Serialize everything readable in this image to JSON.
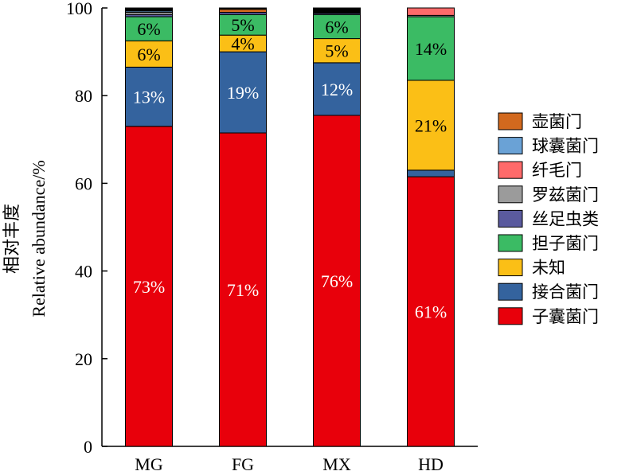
{
  "chart_data": {
    "type": "bar",
    "stacked": true,
    "categories": [
      "MG",
      "FG",
      "MX",
      "HD"
    ],
    "ylim": [
      0,
      100
    ],
    "yticks": [
      0,
      20,
      40,
      60,
      80,
      100
    ],
    "ylabel_line1": "相对丰度",
    "ylabel_line2": "Relative abundance/%",
    "xlabel": "",
    "title": "",
    "legend_position": "right",
    "series": [
      {
        "name": "子囊菌门",
        "color": "#e8000b",
        "values": [
          73,
          71.5,
          75.5,
          61.5
        ],
        "labels": [
          "73%",
          "71%",
          "76%",
          "61%"
        ]
      },
      {
        "name": "接合菌门",
        "color": "#34639e",
        "values": [
          13.5,
          18.5,
          12,
          1.5
        ],
        "labels": [
          "13%",
          "19%",
          "12%",
          ""
        ]
      },
      {
        "name": "未知",
        "color": "#fbbf16",
        "values": [
          6,
          3.8,
          5.5,
          20.5
        ],
        "labels": [
          "6%",
          "4%",
          "5%",
          "21%"
        ]
      },
      {
        "name": "担子菌门",
        "color": "#3bbb64",
        "values": [
          5.5,
          4.7,
          5.5,
          14.5
        ],
        "labels": [
          "6%",
          "5%",
          "6%",
          "14%"
        ]
      },
      {
        "name": "丝足虫类",
        "color": "#5a5a9e",
        "values": [
          0.5,
          0.5,
          0.3,
          0
        ],
        "labels": [
          "",
          "",
          "",
          ""
        ]
      },
      {
        "name": "罗兹菌门",
        "color": "#9b9b9b",
        "values": [
          0.5,
          0,
          0,
          0.3
        ],
        "labels": [
          "",
          "",
          "",
          ""
        ]
      },
      {
        "name": "纤毛门",
        "color": "#ff6a6a",
        "values": [
          0,
          0,
          0,
          1.7
        ],
        "labels": [
          "",
          "",
          "",
          ""
        ]
      },
      {
        "name": "球囊菌门",
        "color": "#6aa2d6",
        "values": [
          0.3,
          0,
          0,
          0
        ],
        "labels": [
          "",
          "",
          "",
          ""
        ]
      },
      {
        "name": "壶菌门",
        "color": "#d2691e",
        "values": [
          0,
          0.7,
          0,
          0
        ],
        "labels": [
          "",
          "",
          "",
          ""
        ]
      },
      {
        "name": "",
        "color": "#000000",
        "values": [
          0.7,
          0.3,
          1.2,
          0
        ],
        "labels": [
          "",
          "",
          "",
          ""
        ]
      }
    ],
    "legend_order": [
      "壶菌门",
      "球囊菌门",
      "纤毛门",
      "罗兹菌门",
      "丝足虫类",
      "担子菌门",
      "未知",
      "接合菌门",
      "子囊菌门"
    ]
  }
}
